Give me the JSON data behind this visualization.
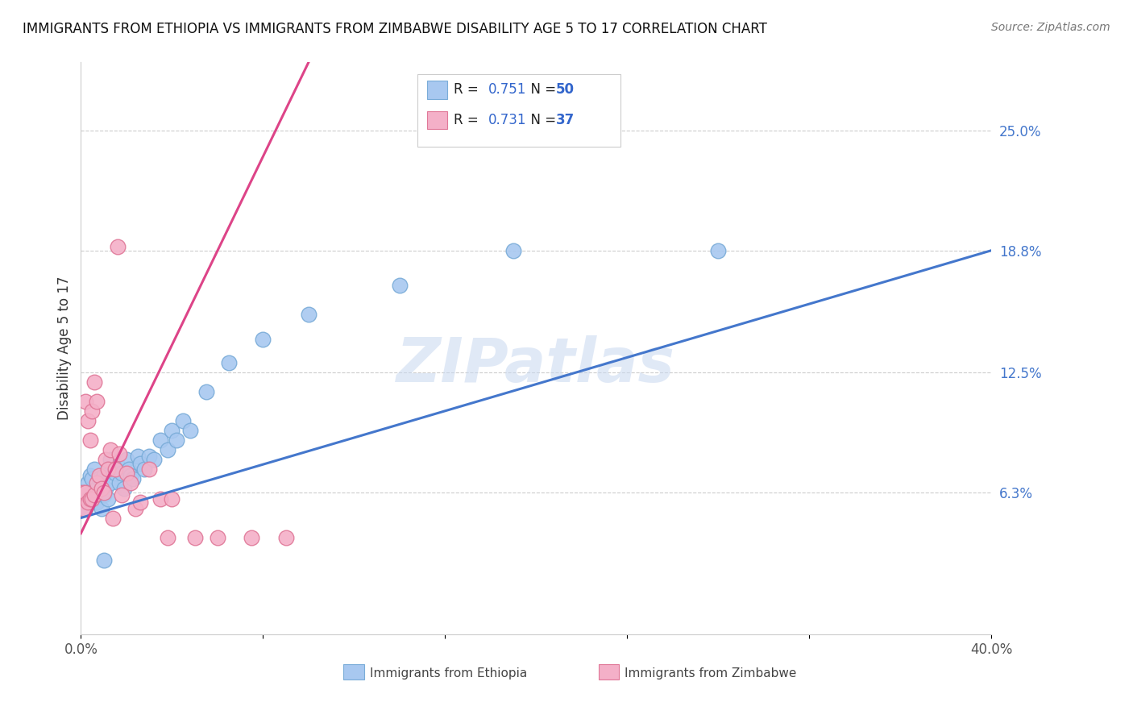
{
  "title": "IMMIGRANTS FROM ETHIOPIA VS IMMIGRANTS FROM ZIMBABWE DISABILITY AGE 5 TO 17 CORRELATION CHART",
  "source": "Source: ZipAtlas.com",
  "ylabel": "Disability Age 5 to 17",
  "xlim": [
    0.0,
    0.4
  ],
  "ylim": [
    -0.01,
    0.285
  ],
  "ytick_labels_right": [
    "6.3%",
    "12.5%",
    "18.8%",
    "25.0%"
  ],
  "ytick_vals_right": [
    0.063,
    0.125,
    0.188,
    0.25
  ],
  "ethiopia_color": "#a8c8f0",
  "ethiopia_edge": "#7aacd8",
  "zimbabwe_color": "#f4b0c8",
  "zimbabwe_edge": "#e07898",
  "ethiopia_line_color": "#4477cc",
  "zimbabwe_line_color": "#dd4488",
  "ethiopia_R": "0.751",
  "ethiopia_N": "50",
  "zimbabwe_R": "0.731",
  "zimbabwe_N": "37",
  "watermark": "ZIPatlas",
  "ethiopia_scatter_x": [
    0.001,
    0.002,
    0.003,
    0.003,
    0.004,
    0.004,
    0.005,
    0.005,
    0.006,
    0.006,
    0.007,
    0.007,
    0.008,
    0.008,
    0.009,
    0.009,
    0.01,
    0.01,
    0.011,
    0.012,
    0.013,
    0.013,
    0.015,
    0.016,
    0.017,
    0.018,
    0.019,
    0.02,
    0.021,
    0.022,
    0.023,
    0.025,
    0.026,
    0.028,
    0.03,
    0.032,
    0.035,
    0.038,
    0.04,
    0.042,
    0.045,
    0.048,
    0.055,
    0.065,
    0.08,
    0.1,
    0.14,
    0.19,
    0.28,
    0.01
  ],
  "ethiopia_scatter_y": [
    0.063,
    0.055,
    0.06,
    0.068,
    0.058,
    0.072,
    0.063,
    0.07,
    0.06,
    0.075,
    0.058,
    0.065,
    0.063,
    0.07,
    0.055,
    0.068,
    0.062,
    0.072,
    0.065,
    0.06,
    0.068,
    0.08,
    0.073,
    0.077,
    0.068,
    0.073,
    0.065,
    0.08,
    0.075,
    0.072,
    0.07,
    0.082,
    0.078,
    0.075,
    0.082,
    0.08,
    0.09,
    0.085,
    0.095,
    0.09,
    0.1,
    0.095,
    0.115,
    0.13,
    0.142,
    0.155,
    0.17,
    0.188,
    0.188,
    0.028
  ],
  "zimbabwe_scatter_x": [
    0.001,
    0.001,
    0.002,
    0.002,
    0.003,
    0.003,
    0.004,
    0.004,
    0.005,
    0.005,
    0.006,
    0.006,
    0.007,
    0.007,
    0.008,
    0.009,
    0.01,
    0.011,
    0.012,
    0.013,
    0.014,
    0.015,
    0.016,
    0.017,
    0.018,
    0.02,
    0.022,
    0.024,
    0.026,
    0.03,
    0.035,
    0.038,
    0.04,
    0.05,
    0.06,
    0.075,
    0.09
  ],
  "zimbabwe_scatter_y": [
    0.063,
    0.055,
    0.063,
    0.11,
    0.058,
    0.1,
    0.06,
    0.09,
    0.06,
    0.105,
    0.062,
    0.12,
    0.068,
    0.11,
    0.072,
    0.065,
    0.063,
    0.08,
    0.075,
    0.085,
    0.05,
    0.075,
    0.19,
    0.083,
    0.062,
    0.073,
    0.068,
    0.055,
    0.058,
    0.075,
    0.06,
    0.04,
    0.06,
    0.04,
    0.04,
    0.04,
    0.04
  ],
  "eth_line_x0": 0.0,
  "eth_line_y0": 0.05,
  "eth_line_x1": 0.4,
  "eth_line_y1": 0.188,
  "zim_line_x0": 0.0,
  "zim_line_y0": 0.042,
  "zim_line_x1": 0.1,
  "zim_line_y1": 0.285
}
